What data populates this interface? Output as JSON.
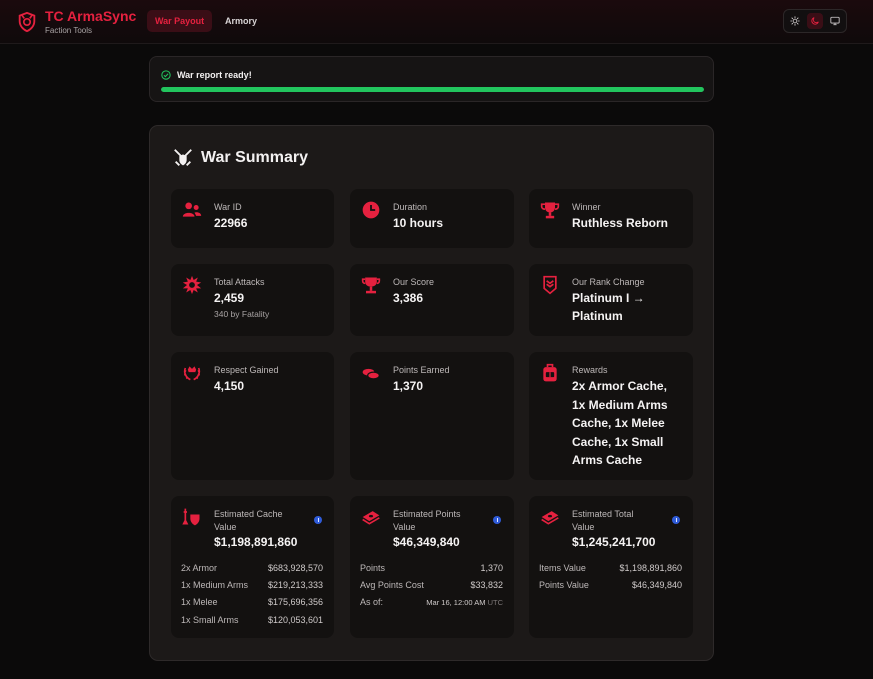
{
  "header": {
    "brand_title": "TC ArmaSync",
    "brand_sub": "Faction Tools",
    "nav": [
      {
        "label": "War Payout",
        "active": true
      },
      {
        "label": "Armory",
        "active": false
      }
    ],
    "theme_options": [
      "sun-icon",
      "moon-icon",
      "monitor-icon"
    ],
    "theme_active": "moon-icon"
  },
  "alert": {
    "text": "War report ready!",
    "progress": 1.0,
    "color": "#22c55e"
  },
  "summary": {
    "title": "War Summary",
    "accent": "#e5213f",
    "cards": {
      "war_id": {
        "label": "War ID",
        "value": "22966"
      },
      "duration": {
        "label": "Duration",
        "value": "10 hours"
      },
      "winner": {
        "label": "Winner",
        "value": "Ruthless Reborn"
      },
      "total_attacks": {
        "label": "Total Attacks",
        "value": "2,459",
        "sub": "340 by Fatality"
      },
      "our_score": {
        "label": "Our Score",
        "value": "3,386"
      },
      "rank_change": {
        "label": "Our Rank Change",
        "value_line1": "Platinum I →",
        "value_line2": "Platinum"
      },
      "respect": {
        "label": "Respect Gained",
        "value": "4,150"
      },
      "points": {
        "label": "Points Earned",
        "value": "1,370"
      },
      "rewards": {
        "label": "Rewards",
        "lines": [
          "2x Armor Cache,",
          "1x Medium Arms",
          "Cache, 1x Melee",
          "Cache, 1x Small",
          "Arms Cache"
        ]
      },
      "cache_value": {
        "label_line1": "Estimated Cache",
        "label_line2": "Value",
        "value": "$1,198,891,860",
        "rows": [
          {
            "label": "2x Armor",
            "value": "$683,928,570"
          },
          {
            "label": "1x Medium Arms",
            "value": "$219,213,333"
          },
          {
            "label": "1x Melee",
            "value": "$175,696,356"
          },
          {
            "label": "1x Small Arms",
            "value": "$120,053,601"
          }
        ]
      },
      "points_value": {
        "label_line1": "Estimated Points",
        "label_line2": "Value",
        "value": "$46,349,840",
        "rows": [
          {
            "label": "Points",
            "value": "1,370"
          },
          {
            "label": "Avg Points Cost",
            "value": "$33,832"
          }
        ],
        "as_of_label": "As of:",
        "as_of_value": "Mar 16, 12:00 AM",
        "as_of_tz": "UTC"
      },
      "total_value": {
        "label_line1": "Estimated Total",
        "label_line2": "Value",
        "value": "$1,245,241,700",
        "rows": [
          {
            "label": "Items Value",
            "value": "$1,198,891,860"
          },
          {
            "label": "Points Value",
            "value": "$46,349,840"
          }
        ]
      }
    }
  }
}
